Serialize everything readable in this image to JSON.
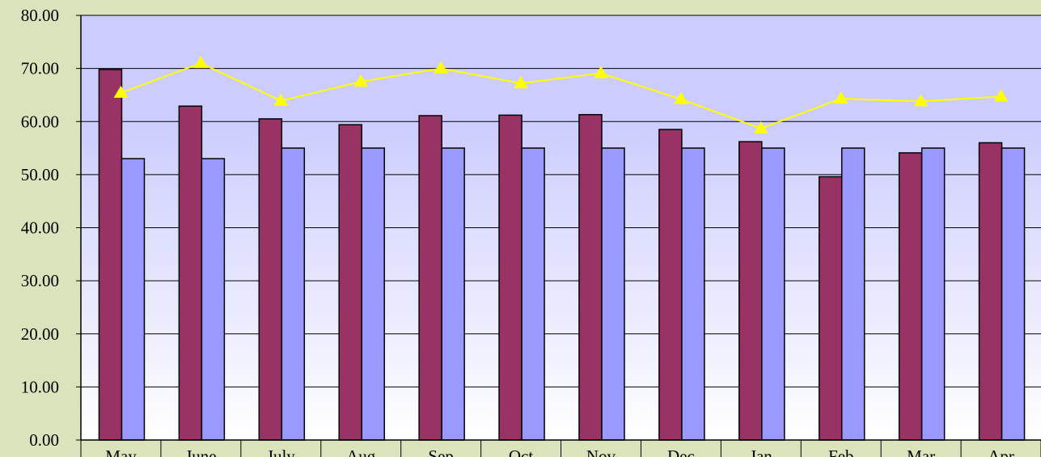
{
  "chart_data": {
    "type": "bar",
    "categories": [
      "May",
      "June",
      "July",
      "Aug",
      "Sep",
      "Oct",
      "Nov",
      "Dec",
      "Jan",
      "Feb",
      "Mar",
      "Apr"
    ],
    "series": [
      {
        "type": "bar",
        "color": "#993366",
        "values": [
          69.8,
          62.9,
          60.5,
          59.4,
          61.1,
          61.2,
          61.3,
          58.5,
          56.2,
          49.6,
          54.1,
          56.0
        ]
      },
      {
        "type": "bar",
        "color": "#9999ff",
        "values": [
          53.0,
          53.0,
          55.0,
          55.0,
          55.0,
          55.0,
          55.0,
          55.0,
          55.0,
          55.0,
          55.0,
          55.0
        ]
      },
      {
        "type": "line",
        "color": "#ffff00",
        "marker": "triangle",
        "values": [
          65.4,
          71.0,
          63.9,
          67.5,
          70.0,
          67.2,
          69.1,
          64.2,
          58.7,
          64.3,
          63.8,
          64.7
        ]
      }
    ],
    "yticks": [
      "0.00",
      "10.00",
      "20.00",
      "30.00",
      "40.00",
      "50.00",
      "60.00",
      "70.00",
      "80.00"
    ],
    "ylim": [
      0,
      80
    ],
    "grid": true,
    "legend": "none",
    "colors": {
      "page_background": "#d9e4bc",
      "plot_gradient_top": "#ccccff",
      "plot_gradient_bottom": "#ffffff",
      "gridline": "#000000"
    }
  }
}
